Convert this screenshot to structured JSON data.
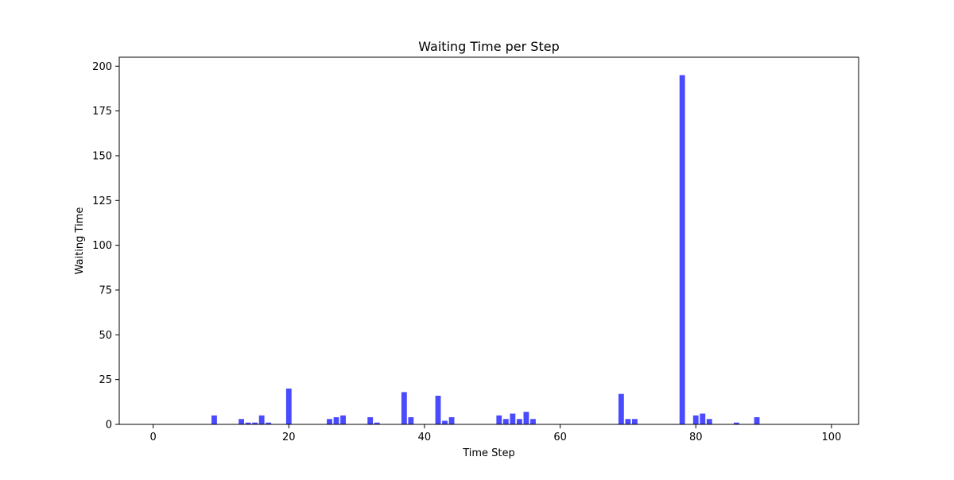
{
  "chart_data": {
    "type": "bar",
    "title": "Waiting Time per Step",
    "xlabel": "Time Step",
    "ylabel": "Waiting Time",
    "xlim": [
      -5,
      104
    ],
    "ylim": [
      0,
      205
    ],
    "xticks": [
      0,
      20,
      40,
      60,
      80,
      100
    ],
    "yticks": [
      0,
      25,
      50,
      75,
      100,
      125,
      150,
      175,
      200
    ],
    "grid": false,
    "legend": "none",
    "bar_color": "#4a4aff",
    "x": [
      9,
      13,
      14,
      15,
      16,
      17,
      20,
      26,
      27,
      28,
      32,
      33,
      37,
      38,
      42,
      43,
      44,
      51,
      52,
      53,
      54,
      55,
      56,
      69,
      70,
      71,
      78,
      80,
      81,
      82,
      86,
      89
    ],
    "values": [
      5,
      3,
      1,
      1,
      5,
      1,
      20,
      3,
      4,
      5,
      4,
      1,
      18,
      4,
      16,
      2,
      4,
      5,
      3,
      6,
      3,
      7,
      3,
      17,
      3,
      3,
      195,
      5,
      6,
      3,
      1,
      4
    ]
  }
}
